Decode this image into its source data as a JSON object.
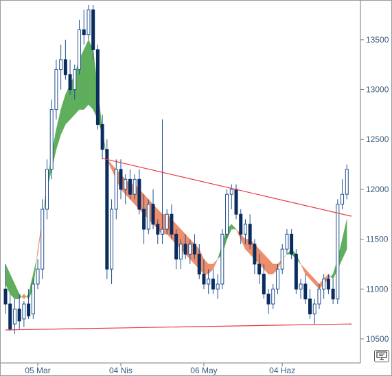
{
  "chart_data": {
    "type": "candlestick",
    "x_tick_labels": [
      "05 Mar",
      "04 Nis",
      "06 May",
      "04 Haz"
    ],
    "y_tick_values": [
      10500,
      11000,
      11500,
      12000,
      12500,
      13000,
      13500
    ],
    "ylim": [
      10300,
      13850
    ],
    "grid": false,
    "colors": {
      "up": "#ffffff",
      "down": "#0b2d5e",
      "outline": "#1f4f8f",
      "cloud_bull": "#5fae5b",
      "cloud_bear": "#ee8e6b",
      "trendline": "#e8373f"
    },
    "candles": [
      [
        11000,
        11250,
        10750,
        10850
      ],
      [
        10850,
        10950,
        10580,
        10600
      ],
      [
        10650,
        10900,
        10550,
        10800
      ],
      [
        10800,
        10950,
        10600,
        10680
      ],
      [
        10700,
        10880,
        10620,
        10850
      ],
      [
        10850,
        11000,
        10700,
        10730
      ],
      [
        10750,
        11100,
        10700,
        11050
      ],
      [
        11050,
        11300,
        11000,
        11200
      ],
      [
        11200,
        11900,
        11100,
        11800
      ],
      [
        11800,
        12300,
        11700,
        12200
      ],
      [
        12200,
        12900,
        12100,
        12800
      ],
      [
        12800,
        13300,
        12700,
        13200
      ],
      [
        13200,
        13450,
        13000,
        13300
      ],
      [
        13300,
        13500,
        13100,
        13150
      ],
      [
        13150,
        13300,
        12950,
        13000
      ],
      [
        13000,
        13250,
        12900,
        13200
      ],
      [
        13200,
        13700,
        13150,
        13600
      ],
      [
        13600,
        13800,
        13450,
        13550
      ],
      [
        13550,
        13850,
        13500,
        13800
      ],
      [
        13800,
        13850,
        13300,
        13400
      ],
      [
        13400,
        13450,
        12600,
        12650
      ],
      [
        12650,
        12750,
        12300,
        12400
      ],
      [
        12400,
        12500,
        11100,
        11200
      ],
      [
        11200,
        11900,
        11050,
        11800
      ],
      [
        11800,
        12300,
        11700,
        12200
      ],
      [
        12200,
        12300,
        11900,
        12000
      ],
      [
        12000,
        12150,
        11850,
        12100
      ],
      [
        12100,
        12200,
        11900,
        11950
      ],
      [
        11950,
        12150,
        11900,
        12100
      ],
      [
        12100,
        12200,
        11750,
        11800
      ],
      [
        11800,
        11950,
        11450,
        11600
      ],
      [
        11600,
        11900,
        11550,
        11850
      ],
      [
        11850,
        12000,
        11600,
        11650
      ],
      [
        11650,
        11700,
        11450,
        11550
      ],
      [
        11550,
        12700,
        11450,
        11600
      ],
      [
        11600,
        11800,
        11550,
        11750
      ],
      [
        11750,
        11850,
        11500,
        11550
      ],
      [
        11550,
        11600,
        11200,
        11300
      ],
      [
        11300,
        11500,
        11200,
        11450
      ],
      [
        11450,
        11550,
        11300,
        11350
      ],
      [
        11350,
        11500,
        11250,
        11450
      ],
      [
        11450,
        11550,
        11300,
        11350
      ],
      [
        11350,
        11450,
        11100,
        11150
      ],
      [
        11150,
        11300,
        11000,
        11050
      ],
      [
        11050,
        11200,
        10950,
        11100
      ],
      [
        11100,
        11200,
        10950,
        11000
      ],
      [
        11000,
        11150,
        10900,
        11050
      ],
      [
        11050,
        11600,
        11000,
        11550
      ],
      [
        11550,
        12000,
        11500,
        11950
      ],
      [
        11950,
        12050,
        11800,
        12000
      ],
      [
        12000,
        12050,
        11700,
        11750
      ],
      [
        11750,
        11800,
        11450,
        11550
      ],
      [
        11550,
        11700,
        11450,
        11650
      ],
      [
        11650,
        11750,
        11400,
        11450
      ],
      [
        11450,
        11500,
        11150,
        11250
      ],
      [
        11250,
        11350,
        11050,
        11150
      ],
      [
        11150,
        11250,
        10900,
        10950
      ],
      [
        10950,
        11000,
        10750,
        10850
      ],
      [
        10850,
        11050,
        10800,
        11000
      ],
      [
        11000,
        11250,
        10950,
        11200
      ],
      [
        11200,
        11450,
        11150,
        11400
      ],
      [
        11400,
        11600,
        11350,
        11550
      ],
      [
        11550,
        11600,
        11300,
        11350
      ],
      [
        11350,
        11400,
        10950,
        11000
      ],
      [
        11000,
        11100,
        10900,
        11050
      ],
      [
        11050,
        11150,
        10850,
        10900
      ],
      [
        10900,
        11000,
        10700,
        10750
      ],
      [
        10750,
        10900,
        10650,
        10850
      ],
      [
        10850,
        11050,
        10800,
        11000
      ],
      [
        11000,
        11150,
        10900,
        11100
      ],
      [
        11100,
        11150,
        10950,
        11000
      ],
      [
        11000,
        11100,
        10850,
        10900
      ],
      [
        10900,
        11900,
        10850,
        11850
      ],
      [
        11850,
        12100,
        11800,
        11950
      ],
      [
        11950,
        12250,
        11900,
        12200
      ]
    ],
    "cloud": [
      [
        11250,
        11050
      ],
      [
        11150,
        10950
      ],
      [
        11050,
        10900
      ],
      [
        10950,
        10900
      ],
      [
        10900,
        10950
      ],
      [
        10950,
        10900
      ],
      [
        11150,
        11000
      ],
      [
        11350,
        11400
      ],
      [
        11700,
        11700
      ],
      [
        12050,
        12000
      ],
      [
        12350,
        12200
      ],
      [
        12600,
        12400
      ],
      [
        12800,
        12550
      ],
      [
        12950,
        12650
      ],
      [
        13050,
        12700
      ],
      [
        13150,
        12750
      ],
      [
        13300,
        12800
      ],
      [
        13400,
        12800
      ],
      [
        13500,
        12850
      ],
      [
        13400,
        12800
      ],
      [
        13000,
        12700
      ],
      [
        12600,
        12550
      ],
      [
        12300,
        12300
      ],
      [
        12200,
        12250
      ],
      [
        12100,
        12200
      ],
      [
        12000,
        12150
      ],
      [
        11950,
        12100
      ],
      [
        11900,
        12050
      ],
      [
        11850,
        12050
      ],
      [
        11800,
        12000
      ],
      [
        11750,
        11950
      ],
      [
        11700,
        11900
      ],
      [
        11650,
        11850
      ],
      [
        11600,
        11800
      ],
      [
        11550,
        11750
      ],
      [
        11550,
        11750
      ],
      [
        11500,
        11700
      ],
      [
        11450,
        11650
      ],
      [
        11400,
        11600
      ],
      [
        11350,
        11550
      ],
      [
        11300,
        11500
      ],
      [
        11250,
        11450
      ],
      [
        11200,
        11400
      ],
      [
        11150,
        11300
      ],
      [
        11150,
        11250
      ],
      [
        11200,
        11250
      ],
      [
        11300,
        11300
      ],
      [
        11450,
        11350
      ],
      [
        11600,
        11500
      ],
      [
        11650,
        11600
      ],
      [
        11600,
        11600
      ],
      [
        11500,
        11550
      ],
      [
        11400,
        11500
      ],
      [
        11350,
        11500
      ],
      [
        11300,
        11450
      ],
      [
        11250,
        11400
      ],
      [
        11200,
        11350
      ],
      [
        11150,
        11300
      ],
      [
        11150,
        11250
      ],
      [
        11200,
        11250
      ],
      [
        11300,
        11300
      ],
      [
        11350,
        11350
      ],
      [
        11400,
        11350
      ],
      [
        11350,
        11300
      ],
      [
        11250,
        11250
      ],
      [
        11150,
        11200
      ],
      [
        11100,
        11150
      ],
      [
        11050,
        11100
      ],
      [
        11000,
        11050
      ],
      [
        11050,
        11100
      ],
      [
        11100,
        11150
      ],
      [
        11150,
        11100
      ],
      [
        11300,
        11200
      ],
      [
        11500,
        11300
      ],
      [
        11700,
        11400
      ]
    ],
    "trendlines": [
      {
        "from": [
          21,
          12310
        ],
        "to": [
          75,
          11730
        ]
      },
      {
        "from": [
          0,
          10590
        ],
        "to": [
          75,
          10650
        ]
      }
    ]
  }
}
